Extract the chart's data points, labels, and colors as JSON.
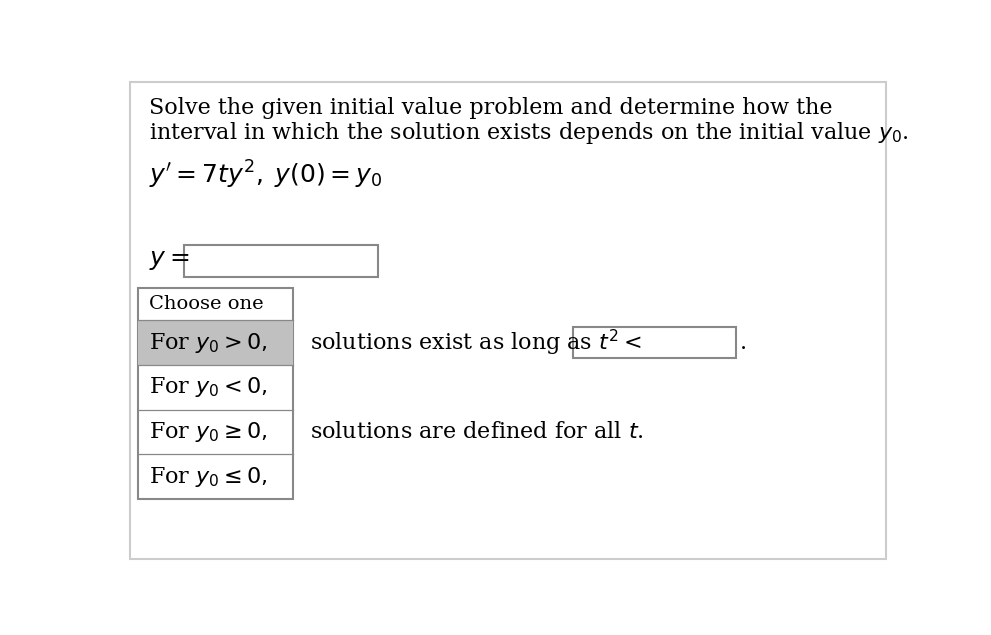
{
  "background_color": "#ffffff",
  "border_color": "#cccccc",
  "title_line1": "Solve the given initial value problem and determine how the",
  "title_line2": "interval in which the solution exists depends on the initial value $y_0$.",
  "equation": "$y' = 7ty^2, \\; y(0) = y_0$",
  "y_label": "$y = $",
  "dropdown_items": [
    "Choose one",
    "For $y_0 > 0,$",
    "For $y_0 < 0,$",
    "For $y_0 \\geq 0,$",
    "For $y_0 \\leq 0,$"
  ],
  "selected_item_index": 1,
  "selected_item_color": "#c0c0c0",
  "text_for_yo_gt_0": "solutions exist as long as $t^2 <$",
  "text_for_yo_ge_0": "solutions are defined for all $t$.",
  "font_size_title": 16,
  "font_size_eq": 18,
  "font_size_dropdown_header": 14,
  "font_size_dropdown_item": 16,
  "font_size_text": 16
}
